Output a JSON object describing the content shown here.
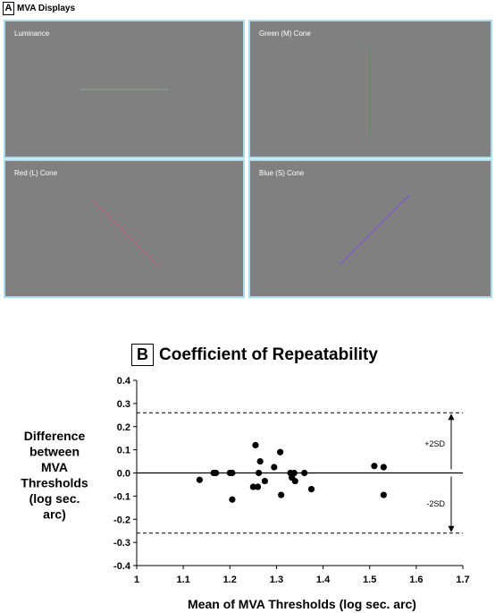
{
  "panel_a": {
    "letter": "A",
    "title": "MVA Displays",
    "tiles": [
      {
        "label": "Luminance",
        "stimulus_color": "#88a090"
      },
      {
        "label": "Green (M) Cone",
        "stimulus_color": "#5f8f63"
      },
      {
        "label": "Red (L) Cone",
        "stimulus_color": "#b5687a"
      },
      {
        "label": "Blue (S) Cone",
        "stimulus_color": "#7a62c0"
      }
    ]
  },
  "panel_b": {
    "letter": "B",
    "title": "Coefficient of Repeatability"
  },
  "chart_data": {
    "type": "scatter",
    "xlabel": "Mean of MVA Thresholds (log sec. arc)",
    "ylabel_lines": [
      "Difference",
      "between",
      "MVA",
      "Thresholds",
      "(log sec.",
      "arc)"
    ],
    "xlim": [
      1.0,
      1.7
    ],
    "ylim": [
      -0.4,
      0.4
    ],
    "x_ticks": [
      "1",
      "1.1",
      "1.2",
      "1.3",
      "1.4",
      "1.5",
      "1.6",
      "1.7"
    ],
    "y_ticks": [
      "0.4",
      "0.3",
      "0.2",
      "0.1",
      "0.0",
      "-0.1",
      "-0.2",
      "-0.3",
      "-0.4"
    ],
    "limits": {
      "upper": 0.26,
      "lower": -0.26,
      "mean": 0.0
    },
    "annotations": {
      "plus": "+2SD",
      "minus": "-2SD"
    },
    "points": [
      [
        1.135,
        -0.03
      ],
      [
        1.165,
        0.0
      ],
      [
        1.17,
        0.0
      ],
      [
        1.2,
        0.0
      ],
      [
        1.205,
        0.0
      ],
      [
        1.205,
        -0.115
      ],
      [
        1.25,
        -0.06
      ],
      [
        1.255,
        0.12
      ],
      [
        1.26,
        -0.06
      ],
      [
        1.262,
        0.0
      ],
      [
        1.265,
        0.05
      ],
      [
        1.275,
        -0.035
      ],
      [
        1.295,
        0.025
      ],
      [
        1.308,
        0.09
      ],
      [
        1.31,
        -0.095
      ],
      [
        1.33,
        0.0
      ],
      [
        1.333,
        -0.02
      ],
      [
        1.338,
        0.0
      ],
      [
        1.34,
        -0.035
      ],
      [
        1.36,
        0.0
      ],
      [
        1.375,
        -0.07
      ],
      [
        1.51,
        0.03
      ],
      [
        1.53,
        0.025
      ],
      [
        1.53,
        -0.095
      ]
    ]
  }
}
